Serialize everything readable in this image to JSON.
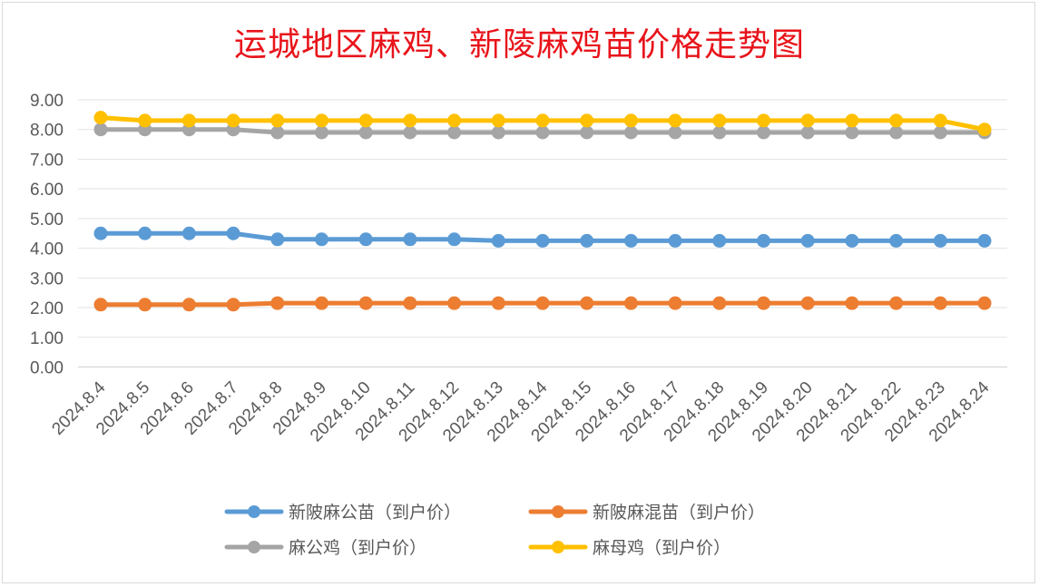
{
  "chart_data": {
    "type": "line",
    "title": "运城地区麻鸡、新陵麻鸡苗价格走势图",
    "xlabel": "",
    "ylabel": "",
    "ylim": [
      0,
      9
    ],
    "yticks": [
      "0.00",
      "1.00",
      "2.00",
      "3.00",
      "4.00",
      "5.00",
      "6.00",
      "7.00",
      "8.00",
      "9.00"
    ],
    "grid": true,
    "legend_position": "bottom",
    "categories": [
      "2024.8.4",
      "2024.8.5",
      "2024.8.6",
      "2024.8.7",
      "2024.8.8",
      "2024.8.9",
      "2024.8.10",
      "2024.8.11",
      "2024.8.12",
      "2024.8.13",
      "2024.8.14",
      "2024.8.15",
      "2024.8.16",
      "2024.8.17",
      "2024.8.18",
      "2024.8.19",
      "2024.8.20",
      "2024.8.21",
      "2024.8.22",
      "2024.8.23",
      "2024.8.24"
    ],
    "series": [
      {
        "name": "新陂麻公苗（到户价）",
        "color": "#5b9bd5",
        "values": [
          4.5,
          4.5,
          4.5,
          4.5,
          4.3,
          4.3,
          4.3,
          4.3,
          4.3,
          4.25,
          4.25,
          4.25,
          4.25,
          4.25,
          4.25,
          4.25,
          4.25,
          4.25,
          4.25,
          4.25,
          4.25
        ]
      },
      {
        "name": "新陂麻混苗（到户价）",
        "color": "#ed7d31",
        "values": [
          2.1,
          2.1,
          2.1,
          2.1,
          2.15,
          2.15,
          2.15,
          2.15,
          2.15,
          2.15,
          2.15,
          2.15,
          2.15,
          2.15,
          2.15,
          2.15,
          2.15,
          2.15,
          2.15,
          2.15,
          2.15
        ]
      },
      {
        "name": "麻公鸡（到户价）",
        "color": "#a5a5a5",
        "values": [
          8.0,
          8.0,
          8.0,
          8.0,
          7.9,
          7.9,
          7.9,
          7.9,
          7.9,
          7.9,
          7.9,
          7.9,
          7.9,
          7.9,
          7.9,
          7.9,
          7.9,
          7.9,
          7.9,
          7.9,
          7.9
        ]
      },
      {
        "name": "麻母鸡（到户价）",
        "color": "#ffc000",
        "values": [
          8.4,
          8.3,
          8.3,
          8.3,
          8.3,
          8.3,
          8.3,
          8.3,
          8.3,
          8.3,
          8.3,
          8.3,
          8.3,
          8.3,
          8.3,
          8.3,
          8.3,
          8.3,
          8.3,
          8.3,
          8.0
        ]
      }
    ]
  }
}
